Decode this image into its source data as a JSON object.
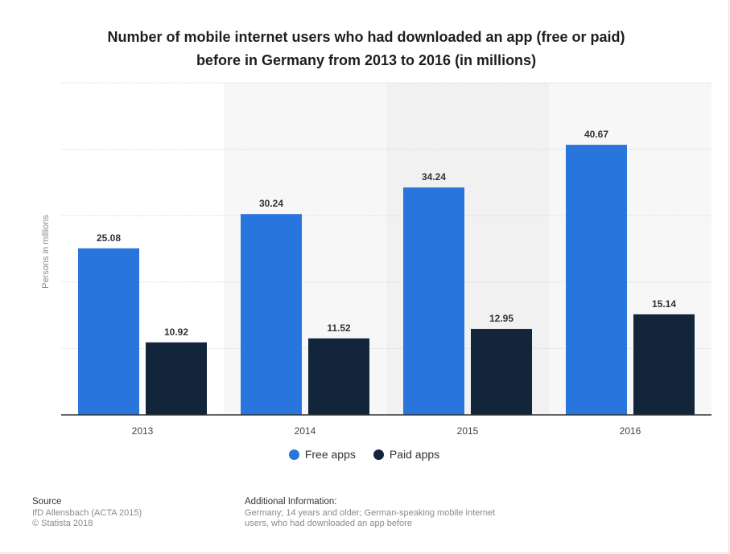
{
  "title": {
    "line1": "Number of mobile internet users who had downloaded an app (free or paid)",
    "line2": "before in Germany from 2013 to 2016 (in millions)"
  },
  "colors": {
    "free": "#2876dd",
    "paid": "#12253b",
    "bandA": "#ffffff",
    "bandB": "#f7f7f7",
    "bandC": "#f1f1f1",
    "grid": "#d9d9d9",
    "axis": "#333333"
  },
  "chart_data": {
    "type": "bar",
    "categories": [
      "2013",
      "2014",
      "2015",
      "2016"
    ],
    "series": [
      {
        "name": "Free apps",
        "values": [
          25.08,
          30.24,
          34.24,
          40.67
        ]
      },
      {
        "name": "Paid apps",
        "values": [
          10.92,
          11.52,
          12.95,
          15.14
        ]
      }
    ],
    "ylabel": "Persons in millions",
    "ylim": [
      0,
      50
    ],
    "grid": true,
    "legend": "bottom"
  },
  "legend": {
    "free": "Free apps",
    "paid": "Paid apps"
  },
  "footer": {
    "source_head": "Source",
    "source_line1": "IfD Allensbach (ACTA 2015)",
    "source_line2": "© Statista 2018",
    "info_head": "Additional Information:",
    "info_text": "Germany; 14 years and older; German-speaking mobile internet users, who had downloaded an app before"
  }
}
